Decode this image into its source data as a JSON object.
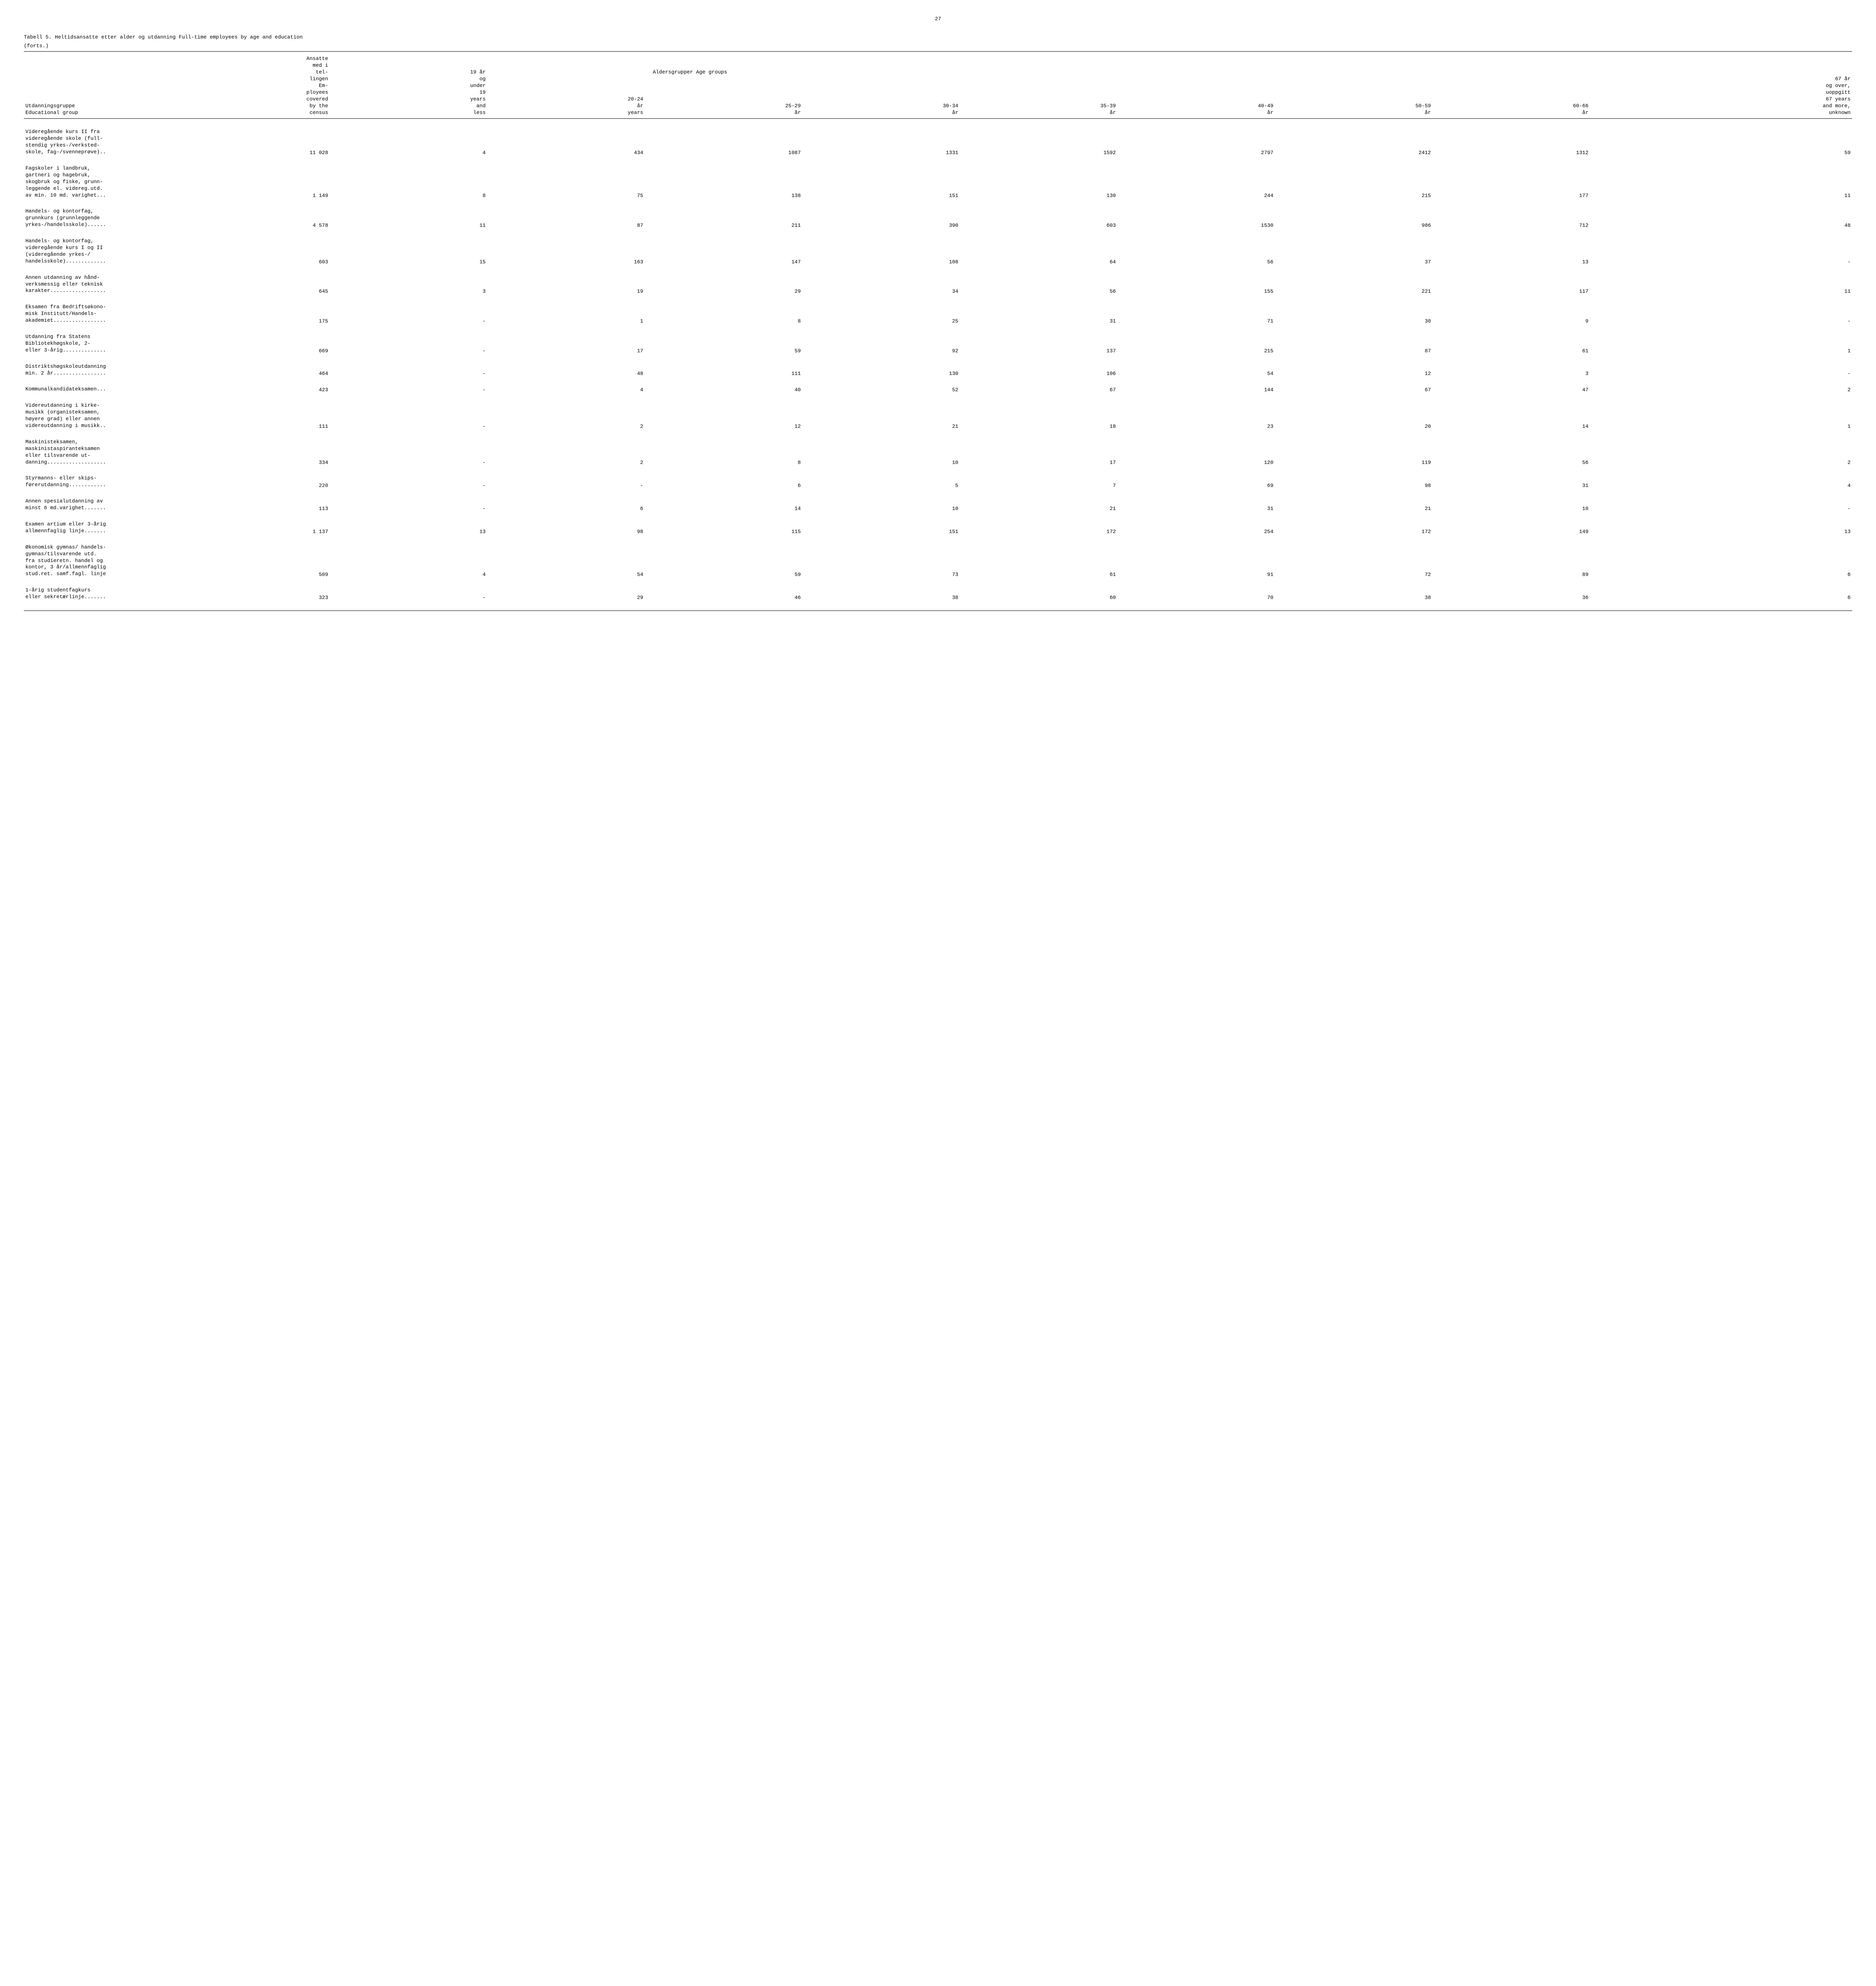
{
  "page_number": "27",
  "title_line1": "Tabell 5.  Heltidsansatte etter alder og utdanning  Full-time employees by age and education",
  "title_line2": "(forts.)",
  "header": {
    "col0_line1": "",
    "col0_line2": "Utdanningsgruppe",
    "col0_line3": "Educational group",
    "col1": "Ansatte\nmed i\ntel-\nlingen\nEm-\nployees\ncovered\nby the\ncensus",
    "col2": "19 år\nog\nunder\n19\nyears\nand\nless",
    "col3": "20-24\når\nyears",
    "col_age_groups": "Aldersgrupper  Age groups",
    "col4": "25-29\når",
    "col5": "30-34\når",
    "col6": "35-39\når",
    "col7": "40-49\når",
    "col8": "50-59\når",
    "col9": "60-66\når",
    "col10": "67 år\nog over,\nuoppgitt\n67 years\nand more,\nunknown"
  },
  "rows": [
    {
      "label": "Videregående kurs II fra\nvideregående skole (full-\nstendig yrkes-/verksted-\nskole, fag-/svenneprøve)..",
      "vals": [
        "11 028",
        "4",
        "434",
        "1087",
        "1331",
        "1592",
        "2797",
        "2412",
        "1312",
        "59"
      ]
    },
    {
      "label": "Fagskoler i landbruk,\ngartneri og hagebruk,\nskogbruk og fiske, grunn-\nleggende el. videreg.utd.\nav min. 10 md. varighet...",
      "vals": [
        "1 149",
        "8",
        "75",
        "138",
        "151",
        "130",
        "244",
        "215",
        "177",
        "11"
      ]
    },
    {
      "label": "Handels- og kontorfag,\ngrunnkurs (grunnleggende\nyrkes-/handelsskole)......",
      "vals": [
        "4 578",
        "11",
        "87",
        "211",
        "390",
        "603",
        "1530",
        "986",
        "712",
        "48"
      ]
    },
    {
      "label": "Handels- og kontorfag,\nvideregående kurs I og II\n(videregående yrkes-/\nhandelsskole).............",
      "vals": [
        "603",
        "15",
        "163",
        "147",
        "108",
        "64",
        "56",
        "37",
        "13",
        "-"
      ]
    },
    {
      "label": "Annen utdanning av hånd-\nverksmessig eller teknisk\nkarakter..................",
      "vals": [
        "645",
        "3",
        "19",
        "29",
        "34",
        "56",
        "155",
        "221",
        "117",
        "11"
      ]
    },
    {
      "label": "Eksamen fra Bedriftsøkono-\nmisk Institutt/Handels-\nakademiet.................",
      "vals": [
        "175",
        "-",
        "1",
        "8",
        "25",
        "31",
        "71",
        "30",
        "9",
        "-"
      ]
    },
    {
      "label": "Utdanning fra Statens\nBibliotekhøgskole, 2-\neller 3-årig..............",
      "vals": [
        "669",
        "-",
        "17",
        "59",
        "92",
        "137",
        "215",
        "87",
        "61",
        "1"
      ]
    },
    {
      "label": "Distriktshøgskoleutdanning\nmin. 2 år.................",
      "vals": [
        "464",
        "-",
        "48",
        "111",
        "130",
        "106",
        "54",
        "12",
        "3",
        "-"
      ]
    },
    {
      "label": "Kommunalkandidateksamen...",
      "vals": [
        "423",
        "-",
        "4",
        "40",
        "52",
        "67",
        "144",
        "67",
        "47",
        "2"
      ]
    },
    {
      "label": "Videreutdanning i kirke-\nmusikk (organisteksamen,\nhøyere grad) eller annen\nvidereutdanning i musikk..",
      "vals": [
        "111",
        "-",
        "2",
        "12",
        "21",
        "18",
        "23",
        "20",
        "14",
        "1"
      ]
    },
    {
      "label": "Maskinisteksamen,\nmaskinistaspiranteksamen\neller tilsvarende ut-\ndanning...................",
      "vals": [
        "334",
        "-",
        "2",
        "8",
        "10",
        "17",
        "120",
        "119",
        "56",
        "2"
      ]
    },
    {
      "label": "Styrmanns- eller skips-\nførerutdanning............",
      "vals": [
        "220",
        "-",
        "-",
        "6",
        "5",
        "7",
        "69",
        "98",
        "31",
        "4"
      ]
    },
    {
      "label": "Annen spesialutdanning av\nminst 6 md.varighet.......",
      "vals": [
        "113",
        "-",
        "6",
        "14",
        "10",
        "21",
        "31",
        "21",
        "10",
        "-"
      ]
    },
    {
      "label": "Examen artium eller 3-årig\nallmennfaglig linje.......",
      "vals": [
        "1 137",
        "13",
        "98",
        "115",
        "151",
        "172",
        "254",
        "172",
        "149",
        "13"
      ]
    },
    {
      "label": "Økonomisk gymnas/ handels-\ngymnas/tilsvarende utd.\nfra studieretn. handel og\nkontor, 3 år/allmennfaglig\nstud.ret. samf.fagl. linje",
      "vals": [
        "509",
        "4",
        "54",
        "59",
        "73",
        "61",
        "91",
        "72",
        "89",
        "6"
      ]
    },
    {
      "label": "1-årig studentfagkurs\neller sekretærlinje.......",
      "vals": [
        "323",
        "-",
        "29",
        "46",
        "38",
        "60",
        "70",
        "38",
        "36",
        "6"
      ]
    }
  ]
}
